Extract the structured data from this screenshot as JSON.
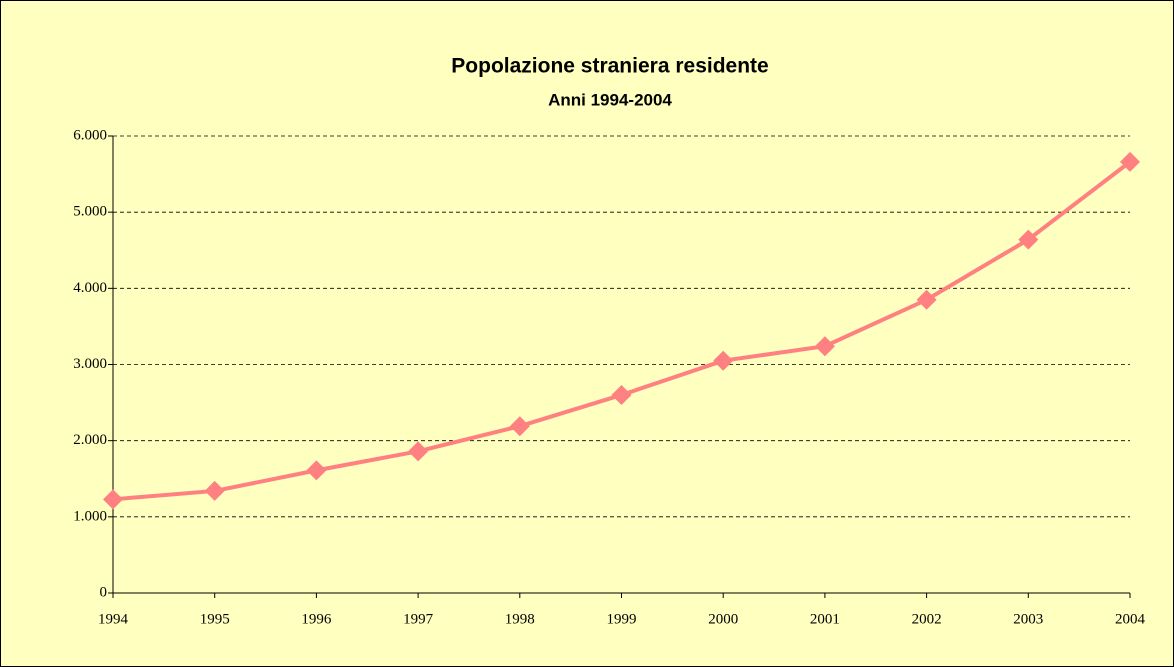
{
  "chart_data": {
    "type": "line",
    "title": "Popolazione straniera residente",
    "subtitle": "Anni 1994-2004",
    "categories": [
      "1994",
      "1995",
      "1996",
      "1997",
      "1998",
      "1999",
      "2000",
      "2001",
      "2002",
      "2003",
      "2004"
    ],
    "series": [
      {
        "name": "Popolazione straniera residente",
        "color": "#ff8080",
        "values": [
          1230,
          1340,
          1610,
          1860,
          2190,
          2600,
          3050,
          3240,
          3850,
          4640,
          5660
        ]
      }
    ],
    "ylim": [
      0,
      6000
    ],
    "yticks": [
      0,
      {
        "value": 1000,
        "label": "1.000"
      },
      {
        "value": 2000,
        "label": "2.000"
      },
      {
        "value": 3000,
        "label": "3.000"
      },
      {
        "value": 4000,
        "label": "4.000"
      },
      {
        "value": 5000,
        "label": "5.000"
      },
      {
        "value": 6000,
        "label": "6.000"
      }
    ],
    "grid": true
  }
}
